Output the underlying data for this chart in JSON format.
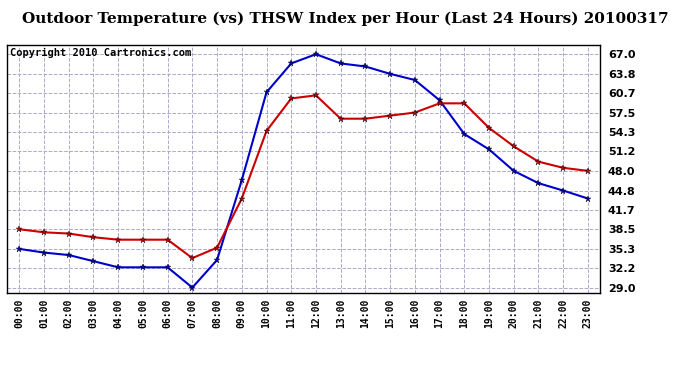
{
  "title": "Outdoor Temperature (vs) THSW Index per Hour (Last 24 Hours) 20100317",
  "copyright": "Copyright 2010 Cartronics.com",
  "hours": [
    "00:00",
    "01:00",
    "02:00",
    "03:00",
    "04:00",
    "05:00",
    "06:00",
    "07:00",
    "08:00",
    "09:00",
    "10:00",
    "11:00",
    "12:00",
    "13:00",
    "14:00",
    "15:00",
    "16:00",
    "17:00",
    "18:00",
    "19:00",
    "20:00",
    "21:00",
    "22:00",
    "23:00"
  ],
  "temp": [
    38.5,
    38.0,
    37.8,
    37.2,
    36.8,
    36.8,
    36.8,
    33.8,
    35.5,
    43.5,
    54.5,
    59.8,
    60.3,
    56.5,
    56.5,
    57.0,
    57.5,
    59.0,
    59.0,
    55.0,
    52.0,
    49.5,
    48.5,
    48.0
  ],
  "thsw": [
    35.3,
    34.7,
    34.3,
    33.3,
    32.3,
    32.3,
    32.3,
    29.0,
    33.5,
    46.5,
    60.8,
    65.5,
    67.0,
    65.5,
    65.0,
    63.8,
    62.8,
    59.5,
    54.0,
    51.5,
    48.0,
    46.0,
    44.8,
    43.5
  ],
  "temp_color": "#cc0000",
  "thsw_color": "#0000cc",
  "ytick_labels": [
    "67.0",
    "63.8",
    "60.7",
    "57.5",
    "54.3",
    "51.2",
    "48.0",
    "44.8",
    "41.7",
    "38.5",
    "35.3",
    "32.2",
    "29.0"
  ],
  "ytick_vals": [
    67.0,
    63.8,
    60.7,
    57.5,
    54.3,
    51.2,
    48.0,
    44.8,
    41.7,
    38.5,
    35.3,
    32.2,
    29.0
  ],
  "ylim": [
    28.2,
    68.5
  ],
  "bg_color": "#ffffff",
  "plot_bg_color": "#ffffff",
  "grid_color": "#aaaacc",
  "title_fontsize": 11,
  "copyright_fontsize": 7.5,
  "tick_fontsize": 8,
  "xtick_fontsize": 7
}
